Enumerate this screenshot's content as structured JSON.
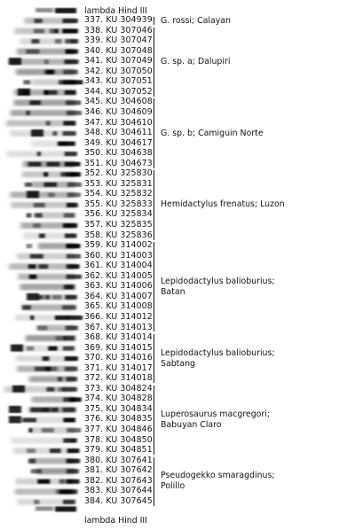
{
  "ladder": {
    "top": "lambda Hind III",
    "bottom": "lambda Hind III"
  },
  "lanes": [
    "337. KU 304939",
    "338. KU 307046",
    "339. KU 307047",
    "340. KU 307048",
    "341. KU 307049",
    "342. KU 307050",
    "343. KU 307051",
    "344. KU 307052",
    "345. KU 304608",
    "346. KU 304609",
    "347. KU 304610",
    "348. KU 304611",
    "349. KU 304617",
    "350. KU 304638",
    "351. KU 304673",
    "352. KU 325830",
    "353. KU 325831",
    "354. KU 325832",
    "355. KU 325833",
    "356. KU 325834",
    "357. KU 325835",
    "358. KU 325836",
    "359. KU 314002",
    "360. KU 314003",
    "361. KU 314004",
    "362. KU 314005",
    "363. KU 314006",
    "364. KU 314007",
    "365. KU 314008",
    "366. KU 314012",
    "367. KU 314013",
    "368. KU 314014",
    "369. KU 314015",
    "370. KU 314016",
    "371. KU 314017",
    "372. KU 314018",
    "373. KU 304824",
    "374. KU 304828",
    "375. KU 304834",
    "376. KU 304835",
    "377. KU 304846",
    "378. KU 304850",
    "379. KU 304851",
    "380. KU 307641",
    "381. KU 307642",
    "382. KU 307643",
    "383. KU 307644",
    "384. KU 307645"
  ],
  "groups": [
    {
      "label": "G. rossi; Calayan",
      "first": 0,
      "last": 0
    },
    {
      "label": "G. sp. a; Dalupiri",
      "first": 1,
      "last": 7
    },
    {
      "label": "G. sp. b; Camiguin Norte",
      "first": 8,
      "last": 14
    },
    {
      "label": "Hemidactylus frenatus; Luzon",
      "first": 15,
      "last": 21
    },
    {
      "label": "Lepidodactylus balioburius;\nBatan",
      "first": 22,
      "last": 30
    },
    {
      "label": "Lepidodactylus balioburius;\nSabtang",
      "first": 31,
      "last": 35
    },
    {
      "label": "Luperosaurus macgregori;\nBabuyan Claro",
      "first": 36,
      "last": 42
    },
    {
      "label": "Pseudogekko smaragdinus;\nPolillo",
      "first": 43,
      "last": 47
    }
  ]
}
